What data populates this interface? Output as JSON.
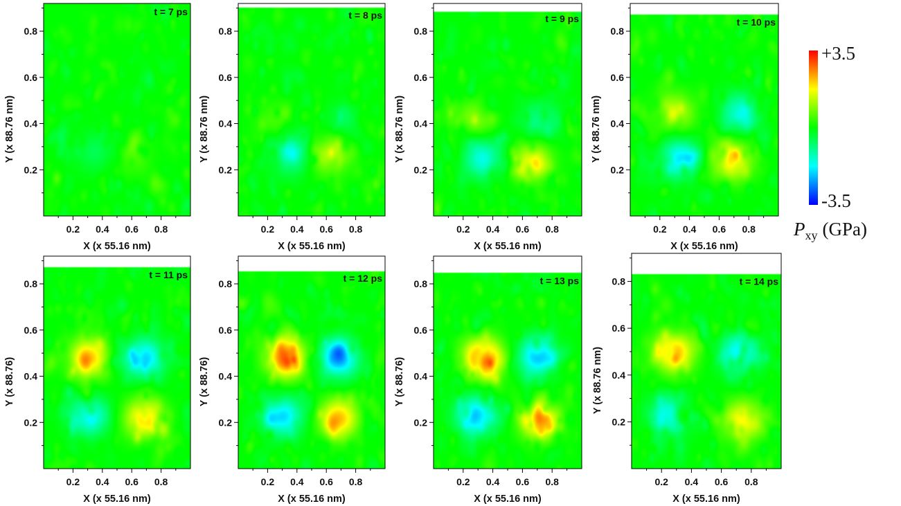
{
  "chart_data": {
    "type": "heatmap",
    "colorbar": {
      "max_label": "+3.5",
      "min_label": "-3.5",
      "symbol": "P",
      "subscript": "xy",
      "unit": "(GPa)",
      "range": [
        -3.5,
        3.5
      ],
      "colors": [
        "#0000ff",
        "#00ffff",
        "#00ff00",
        "#ffff00",
        "#ff0000"
      ]
    },
    "x_ticks": [
      "0.2",
      "0.4",
      "0.6",
      "0.8"
    ],
    "y_ticks": [
      "0.2",
      "0.4",
      "0.6",
      "0.8"
    ],
    "xlim": [
      0,
      1
    ],
    "ylim": [
      0,
      0.92
    ],
    "panels": [
      {
        "time_label": "t = 7 ps",
        "xlabel": "X (x 55.16 nm)",
        "ylabel": "Y (x 88.76 nm)",
        "data_top": 0.92,
        "features": [
          {
            "x": 0.35,
            "y": 0.28,
            "amp": -0.6
          },
          {
            "x": 0.58,
            "y": 0.27,
            "amp": 0.6
          }
        ]
      },
      {
        "time_label": "t = 8 ps",
        "xlabel": "X (x 55.16 nm)",
        "ylabel": "Y (x 88.76 nm)",
        "data_top": 0.905,
        "features": [
          {
            "x": 0.35,
            "y": 0.27,
            "amp": -1.3
          },
          {
            "x": 0.62,
            "y": 0.27,
            "amp": 1.4
          },
          {
            "x": 0.25,
            "y": 0.41,
            "amp": 0.5
          },
          {
            "x": 0.72,
            "y": 0.41,
            "amp": -0.5
          }
        ]
      },
      {
        "time_label": "t = 9 ps",
        "xlabel": "X (x 55.16 nm)",
        "ylabel": "Y (x 88.76 nm)",
        "data_top": 0.89,
        "features": [
          {
            "x": 0.33,
            "y": 0.25,
            "amp": -1.6
          },
          {
            "x": 0.66,
            "y": 0.24,
            "amp": 1.6
          },
          {
            "x": 0.27,
            "y": 0.42,
            "amp": 0.9
          },
          {
            "x": 0.72,
            "y": 0.42,
            "amp": -0.9
          }
        ]
      },
      {
        "time_label": "t = 10 ps",
        "xlabel": "X (x 55.16 nm)",
        "ylabel": "Y (x 88.76 nm)",
        "data_top": 0.875,
        "features": [
          {
            "x": 0.33,
            "y": 0.25,
            "amp": -1.9
          },
          {
            "x": 0.68,
            "y": 0.24,
            "amp": 1.9
          },
          {
            "x": 0.3,
            "y": 0.45,
            "amp": 1.3
          },
          {
            "x": 0.72,
            "y": 0.45,
            "amp": -1.3
          }
        ]
      },
      {
        "time_label": "t = 11 ps",
        "xlabel": "X (x 55.16 nm)",
        "ylabel": "Y (x 88.76)",
        "data_top": 0.875,
        "features": [
          {
            "x": 0.3,
            "y": 0.23,
            "amp": -1.8
          },
          {
            "x": 0.68,
            "y": 0.22,
            "amp": 2.1
          },
          {
            "x": 0.3,
            "y": 0.48,
            "amp": 2.2
          },
          {
            "x": 0.68,
            "y": 0.48,
            "amp": -2.1
          }
        ]
      },
      {
        "time_label": "t = 12 ps",
        "xlabel": "X (x 55.16 nm)",
        "ylabel": "Y (x 88.76)",
        "data_top": 0.86,
        "features": [
          {
            "x": 0.3,
            "y": 0.23,
            "amp": -2.0
          },
          {
            "x": 0.68,
            "y": 0.22,
            "amp": 2.2
          },
          {
            "x": 0.32,
            "y": 0.48,
            "amp": 2.8
          },
          {
            "x": 0.68,
            "y": 0.48,
            "amp": -2.4
          }
        ]
      },
      {
        "time_label": "t = 13 ps",
        "xlabel": "X (x 55.16 nm)",
        "ylabel": "Y (x 88.76)",
        "data_top": 0.85,
        "features": [
          {
            "x": 0.28,
            "y": 0.23,
            "amp": -2.2
          },
          {
            "x": 0.72,
            "y": 0.21,
            "amp": 2.4
          },
          {
            "x": 0.33,
            "y": 0.48,
            "amp": 3.0
          },
          {
            "x": 0.7,
            "y": 0.49,
            "amp": -2.2
          }
        ]
      },
      {
        "time_label": "t = 14 ps",
        "xlabel": "X (x 55.16 nm)",
        "ylabel": "Y (x 88.76 nm)",
        "data_top": 0.835,
        "features": [
          {
            "x": 0.24,
            "y": 0.23,
            "amp": -1.7
          },
          {
            "x": 0.74,
            "y": 0.21,
            "amp": 1.8
          },
          {
            "x": 0.28,
            "y": 0.5,
            "amp": 2.3
          },
          {
            "x": 0.72,
            "y": 0.5,
            "amp": -1.9
          }
        ]
      }
    ]
  }
}
